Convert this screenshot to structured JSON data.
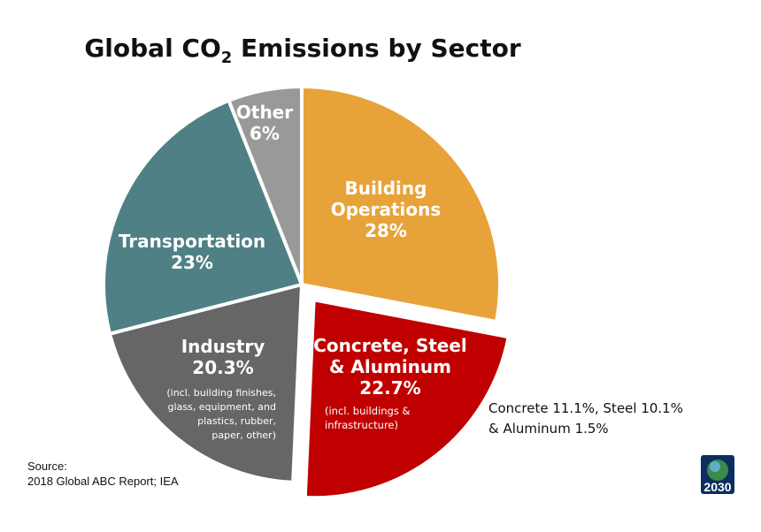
{
  "chart_data": {
    "type": "pie",
    "title_main": "Global CO",
    "title_sub": "2",
    "title_rest": " Emissions by Sector",
    "start_angle_deg": 0,
    "direction": "clockwise",
    "slices": [
      {
        "key": "building-operations",
        "label_lines": [
          "Building",
          "Operations"
        ],
        "value": 28,
        "value_label": "28%",
        "color": "#E8A23A",
        "explode": false,
        "note_lines": []
      },
      {
        "key": "concrete-steel-aluminum",
        "label_lines": [
          "Concrete, Steel",
          "& Aluminum"
        ],
        "value": 22.7,
        "value_label": "22.7%",
        "color": "#C00000",
        "explode": true,
        "note_lines": [
          "(incl. buildings &",
          "infrastructure)"
        ]
      },
      {
        "key": "industry",
        "label_lines": [
          "Industry"
        ],
        "value": 20.3,
        "value_label": "20.3%",
        "color": "#666666",
        "explode": false,
        "note_lines": [
          "(incl. building finishes,",
          "glass, equipment, and",
          "plastics, rubber,",
          "paper, other)"
        ]
      },
      {
        "key": "transportation",
        "label_lines": [
          "Transportation"
        ],
        "value": 23,
        "value_label": "23%",
        "color": "#4E8085",
        "explode": false,
        "note_lines": []
      },
      {
        "key": "other",
        "label_lines": [
          "Other"
        ],
        "value": 6,
        "value_label": "6%",
        "color": "#999999",
        "explode": false,
        "note_lines": []
      }
    ],
    "breakdown_note_lines": [
      "Concrete 11.1%, Steel 10.1%",
      "& Aluminum 1.5%"
    ]
  },
  "source": {
    "label": "Source:",
    "text": "2018 Global ABC Report; IEA"
  },
  "logo": {
    "text": "2030"
  }
}
